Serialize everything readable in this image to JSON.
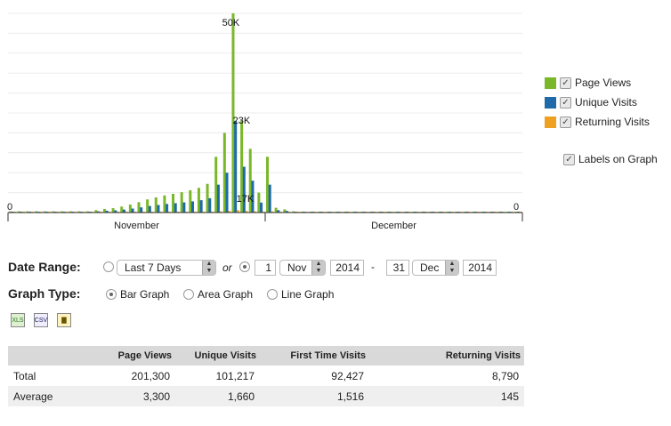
{
  "chart_data": {
    "type": "bar",
    "labels_on_graph": true,
    "x_axis_months": [
      "November",
      "December"
    ],
    "y_left_label": "0",
    "y_right_label": "0",
    "data_labels": [
      "50K",
      "23K",
      "17K"
    ],
    "series": [
      {
        "name": "Page Views",
        "color": "#7ab82a",
        "values": [
          300,
          300,
          300,
          300,
          300,
          300,
          300,
          300,
          300,
          300,
          600,
          900,
          1100,
          1500,
          2000,
          2600,
          3300,
          3800,
          4300,
          4700,
          5100,
          5600,
          6200,
          7200,
          14000,
          20000,
          50000,
          23000,
          16000,
          5000,
          14000,
          1200,
          800,
          300,
          200,
          150,
          100,
          100,
          100,
          100,
          100,
          100,
          100,
          100,
          100,
          100,
          100,
          100,
          100,
          100,
          100,
          100,
          100,
          100,
          100,
          100,
          100,
          100,
          100,
          100
        ]
      },
      {
        "name": "Unique Visits",
        "color": "#1f6aa8",
        "values": [
          200,
          200,
          200,
          200,
          200,
          200,
          200,
          200,
          200,
          200,
          300,
          450,
          550,
          750,
          1000,
          1300,
          1650,
          1900,
          2150,
          2350,
          2550,
          2800,
          3100,
          3600,
          7000,
          10000,
          23000,
          11500,
          8000,
          2500,
          7000,
          600,
          400,
          150,
          100,
          80,
          60,
          60,
          60,
          60,
          60,
          60,
          60,
          60,
          60,
          60,
          60,
          60,
          60,
          60,
          60,
          60,
          60,
          60,
          60,
          60,
          60,
          60,
          60,
          60
        ]
      },
      {
        "name": "Returning Visits",
        "color": "#f0a020",
        "values": [
          20,
          20,
          20,
          20,
          20,
          20,
          20,
          20,
          20,
          20,
          30,
          50,
          60,
          80,
          100,
          120,
          140,
          150,
          160,
          170,
          180,
          200,
          220,
          240,
          300,
          400,
          600,
          400,
          300,
          200,
          300,
          80,
          60,
          30,
          20,
          20,
          20,
          20,
          20,
          20,
          20,
          20,
          20,
          20,
          20,
          20,
          20,
          20,
          20,
          20,
          20,
          20,
          20,
          20,
          20,
          20,
          20,
          20,
          20,
          20
        ]
      }
    ],
    "ylim": [
      0,
      50000
    ],
    "grid": true,
    "legend_position": "right"
  },
  "legend": {
    "items": [
      {
        "label": "Page Views",
        "color": "#7ab82a"
      },
      {
        "label": "Unique Visits",
        "color": "#1f6aa8"
      },
      {
        "label": "Returning Visits",
        "color": "#f0a020"
      }
    ],
    "labels_on_graph": "Labels on Graph",
    "check_mark": "✓"
  },
  "controls": {
    "date_range_label": "Date Range:",
    "preset": "Last 7 Days",
    "or_text": "or",
    "from_day": "1",
    "from_month": "Nov",
    "from_year": "2014",
    "dash": "-",
    "to_day": "31",
    "to_month": "Dec",
    "to_year": "2014",
    "graph_type_label": "Graph Type:",
    "bar_graph": "Bar Graph",
    "area_graph": "Area Graph",
    "line_graph": "Line Graph"
  },
  "icons": {
    "excel": "XLS",
    "csv": "CSV",
    "chart": "▇"
  },
  "table": {
    "headers": [
      "",
      "Page Views",
      "Unique Visits",
      "First Time Visits",
      "Returning Visits"
    ],
    "rows": [
      [
        "Total",
        "201,300",
        "101,217",
        "92,427",
        "8,790"
      ],
      [
        "Average",
        "3,300",
        "1,660",
        "1,516",
        "145"
      ]
    ]
  }
}
